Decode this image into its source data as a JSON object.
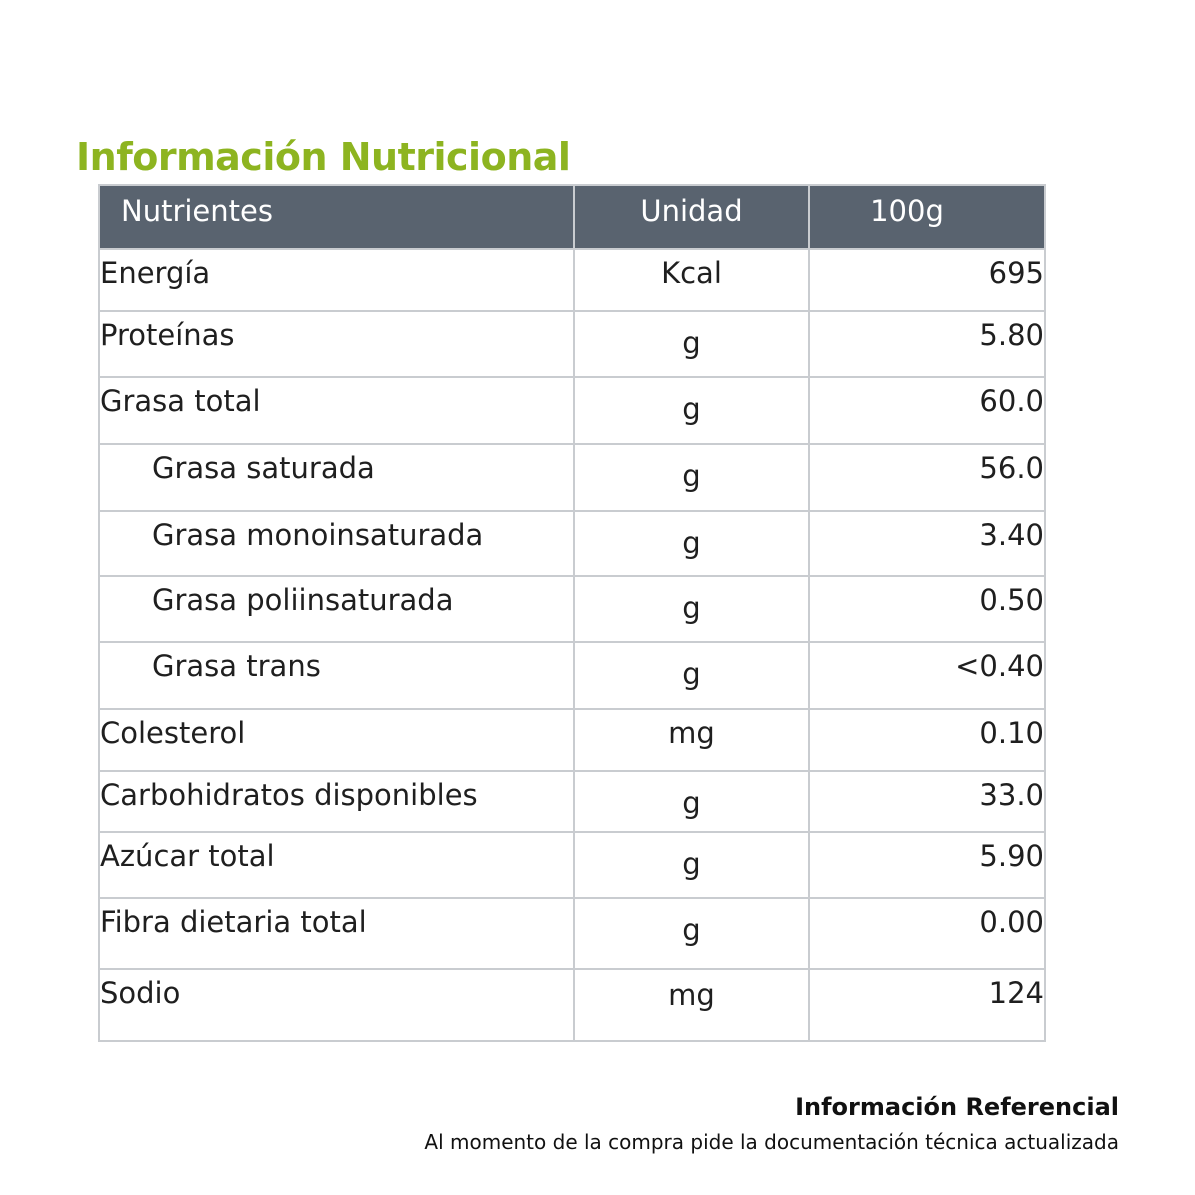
{
  "title": "Información Nutricional",
  "table": {
    "headers": {
      "name": "Nutrientes",
      "unit": "Unidad",
      "value": "100g"
    },
    "rows": [
      {
        "name": "Energía",
        "unit": "Kcal",
        "value": "695"
      },
      {
        "name": "Proteínas",
        "unit": "g",
        "value": "5.80"
      },
      {
        "name": "Grasa total",
        "unit": "g",
        "value": "60.0"
      },
      {
        "name": "Grasa saturada",
        "unit": "g",
        "value": "56.0"
      },
      {
        "name": "Grasa monoinsaturada",
        "unit": "g",
        "value": "3.40"
      },
      {
        "name": "Grasa poliinsaturada",
        "unit": "g",
        "value": "0.50"
      },
      {
        "name": "Grasa trans",
        "unit": "g",
        "value": "<0.40"
      },
      {
        "name": "Colesterol",
        "unit": "mg",
        "value": "0.10"
      },
      {
        "name": "Carbohidratos disponibles",
        "unit": "g",
        "value": "33.0"
      },
      {
        "name": "Azúcar total",
        "unit": "g",
        "value": "5.90"
      },
      {
        "name": "Fibra dietaria total",
        "unit": "g",
        "value": "0.00"
      },
      {
        "name": "Sodio",
        "unit": "mg",
        "value": "124"
      }
    ]
  },
  "footer": {
    "title": "Información Referencial",
    "note": "Al momento de la compra pide la documentación técnica actualizada"
  },
  "colors": {
    "title": "#8db420",
    "header_bg": "#59636f",
    "border": "#c9ccd0"
  }
}
